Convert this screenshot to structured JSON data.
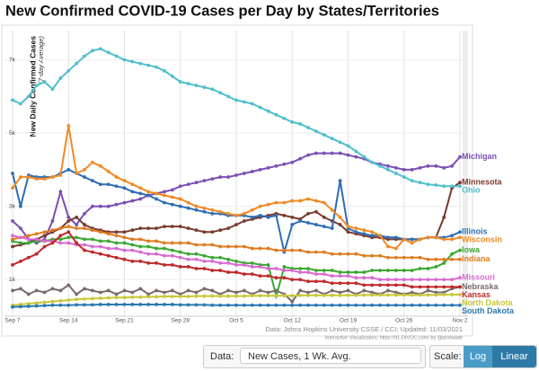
{
  "chart_data": {
    "type": "line",
    "title": "New Confirmed COVID-19 Cases per Day by States/Territories",
    "y_label": "New Daily Confirmed Cases",
    "y_sublabel": "(7-day Average)",
    "source": "Data: Johns Hopkins University CSSE / CCI; Updated: 11/03/2021",
    "credit": "Interactive Visualization: https://91-DIVOC.com/ by @profwade",
    "log_scale": false,
    "grid": true,
    "categories": [
      "Sep 7",
      null,
      null,
      null,
      null,
      null,
      null,
      "Sep 14",
      null,
      null,
      null,
      null,
      null,
      null,
      "Sep 21",
      null,
      null,
      null,
      null,
      null,
      null,
      "Sep 28",
      null,
      null,
      null,
      null,
      null,
      null,
      "Oct 5",
      null,
      null,
      null,
      null,
      null,
      null,
      "Oct 12",
      null,
      null,
      null,
      null,
      null,
      null,
      "Oct 19",
      null,
      null,
      null,
      null,
      null,
      null,
      "Oct 26",
      null,
      null,
      null,
      null,
      null,
      null,
      "Nov 2"
    ],
    "ylim": [
      0,
      7800
    ],
    "yticks": [
      {
        "value": 1000,
        "label": "1k"
      },
      {
        "value": 3000,
        "label": "3k"
      },
      {
        "value": 5000,
        "label": "5k"
      },
      {
        "value": 7000,
        "label": "7k"
      }
    ],
    "series": [
      {
        "name": "Michigan",
        "color": "#7b4fb5",
        "values": [
          2600,
          2400,
          2100,
          2000,
          2100,
          2600,
          3400,
          2700,
          2500,
          2800,
          3000,
          3000,
          3000,
          3050,
          3100,
          3150,
          3200,
          3300,
          3350,
          3400,
          3450,
          3550,
          3600,
          3650,
          3700,
          3750,
          3800,
          3800,
          3850,
          3900,
          3950,
          4000,
          4050,
          4100,
          4150,
          4200,
          4300,
          4400,
          4450,
          4450,
          4450,
          4450,
          4400,
          4350,
          4300,
          4200,
          4150,
          4100,
          4050,
          4000,
          4000,
          4050,
          4100,
          4100,
          4050,
          4100,
          4350
        ]
      },
      {
        "name": "Minnesota",
        "color": "#7a3b2e",
        "values": [
          1900,
          1950,
          2000,
          2100,
          2200,
          2300,
          2400,
          2600,
          2700,
          2500,
          2400,
          2350,
          2300,
          2300,
          2300,
          2350,
          2400,
          2400,
          2400,
          2450,
          2450,
          2450,
          2400,
          2350,
          2300,
          2300,
          2350,
          2400,
          2500,
          2600,
          2650,
          2700,
          2750,
          2800,
          2750,
          2700,
          2650,
          2800,
          2850,
          2700,
          2600,
          2500,
          2300,
          2250,
          2200,
          2150,
          2150,
          2100,
          2100,
          2100,
          2100,
          2100,
          2150,
          2150,
          2700,
          3500,
          3650
        ]
      },
      {
        "name": "Ohio",
        "color": "#4fbfcc",
        "values": [
          5900,
          5800,
          6000,
          6300,
          6400,
          6200,
          6500,
          6700,
          6900,
          7100,
          7250,
          7300,
          7200,
          7100,
          7000,
          6950,
          6900,
          6850,
          6800,
          6700,
          6550,
          6400,
          6350,
          6300,
          6250,
          6200,
          6100,
          6000,
          5900,
          5850,
          5800,
          5700,
          5600,
          5500,
          5400,
          5300,
          5250,
          5150,
          5050,
          4950,
          4850,
          4750,
          4650,
          4500,
          4350,
          4200,
          4100,
          4000,
          3900,
          3800,
          3700,
          3650,
          3600,
          3580,
          3550,
          3550,
          3550
        ]
      },
      {
        "name": "Illinois",
        "color": "#2e6db4",
        "values": [
          3900,
          3000,
          3850,
          3800,
          3800,
          3800,
          3900,
          4000,
          3900,
          3800,
          3700,
          3600,
          3600,
          3550,
          3500,
          3400,
          3350,
          3300,
          3200,
          3100,
          3050,
          3000,
          2950,
          2900,
          2850,
          2800,
          2800,
          2750,
          2750,
          2750,
          2700,
          2750,
          2700,
          2750,
          1750,
          2500,
          2600,
          2550,
          2500,
          2450,
          2400,
          3700,
          2400,
          2300,
          2250,
          2200,
          2200,
          2150,
          2150,
          2100,
          2100,
          2100,
          2150,
          2150,
          2150,
          2200,
          2300
        ]
      },
      {
        "name": "Wisconsin",
        "color": "#f08a24",
        "values": [
          3500,
          3800,
          3800,
          3750,
          3750,
          3800,
          3850,
          5200,
          3900,
          4000,
          4200,
          4100,
          3950,
          3800,
          3700,
          3600,
          3500,
          3400,
          3350,
          3300,
          3250,
          3200,
          3100,
          3000,
          2950,
          2900,
          2850,
          2800,
          2750,
          2800,
          2900,
          3000,
          3050,
          3100,
          3100,
          3150,
          3150,
          3200,
          3150,
          3100,
          2900,
          2700,
          2450,
          2400,
          2350,
          2300,
          2200,
          1900,
          1850,
          2100,
          2000,
          2100,
          2150,
          2150,
          2100,
          2100,
          2150
        ]
      },
      {
        "name": "Iowa",
        "color": "#3aa832",
        "values": [
          2050,
          2000,
          2000,
          2050,
          2050,
          2100,
          2100,
          2150,
          2150,
          2100,
          2100,
          2050,
          2050,
          2000,
          2000,
          1950,
          1900,
          1900,
          1850,
          1850,
          1800,
          1750,
          1700,
          1700,
          1650,
          1600,
          1600,
          1550,
          1500,
          1450,
          1450,
          1400,
          1400,
          550,
          1350,
          1300,
          1300,
          1300,
          1250,
          1250,
          1250,
          1200,
          1200,
          1200,
          1200,
          1250,
          1250,
          1250,
          1250,
          1250,
          1250,
          1300,
          1300,
          1350,
          1450,
          1700,
          1800
        ]
      },
      {
        "name": "Indiana",
        "color": "#e07b20",
        "values": [
          2100,
          2150,
          2200,
          2250,
          2300,
          2350,
          2400,
          2450,
          2400,
          2400,
          2350,
          2300,
          2250,
          2200,
          2150,
          2100,
          2100,
          2050,
          2050,
          2000,
          2000,
          2000,
          2000,
          1950,
          1950,
          1950,
          1900,
          1900,
          1900,
          1900,
          1850,
          1850,
          1850,
          1800,
          1800,
          1800,
          1800,
          1750,
          1750,
          1750,
          1700,
          1700,
          1700,
          1700,
          1650,
          1650,
          1650,
          1600,
          1600,
          1600,
          1600,
          1600,
          1550,
          1550,
          1550,
          1550,
          1550
        ]
      },
      {
        "name": "Nebraska",
        "color": "#7a6a6a",
        "values": [
          700,
          750,
          600,
          700,
          650,
          750,
          700,
          850,
          600,
          750,
          700,
          650,
          700,
          600,
          700,
          650,
          750,
          600,
          700,
          650,
          700,
          600,
          700,
          650,
          750,
          700,
          600,
          700,
          650,
          700,
          600,
          700,
          650,
          700,
          600,
          400,
          700,
          650,
          700,
          600,
          700,
          650,
          700,
          600,
          700,
          650,
          600,
          700,
          650,
          600,
          650,
          600,
          700,
          650,
          650,
          750,
          800
        ]
      },
      {
        "name": "Missouri",
        "color": "#d86ad0",
        "values": [
          2200,
          2150,
          2100,
          2100,
          2050,
          2050,
          2000,
          2000,
          1950,
          1950,
          1900,
          1900,
          1850,
          1850,
          1800,
          1800,
          1750,
          1700,
          1700,
          1650,
          1650,
          1600,
          1550,
          1550,
          1500,
          1500,
          1450,
          1450,
          1400,
          1400,
          1350,
          1350,
          1300,
          1300,
          1250,
          1250,
          1200,
          1200,
          1150,
          1150,
          1100,
          1100,
          1100,
          1050,
          1050,
          1050,
          1000,
          1000,
          1000,
          1000,
          1000,
          1000,
          1000,
          1000,
          1000,
          1000,
          1050
        ]
      },
      {
        "name": "Kansas",
        "color": "#c0282a",
        "values": [
          1400,
          1500,
          1600,
          1700,
          1900,
          2000,
          2200,
          2300,
          2000,
          1800,
          1750,
          1700,
          1650,
          1600,
          1550,
          1500,
          1500,
          1450,
          1450,
          1400,
          1400,
          1350,
          1350,
          1300,
          1300,
          1250,
          1250,
          1200,
          1200,
          1150,
          1150,
          1100,
          1100,
          1050,
          1050,
          1000,
          1000,
          950,
          950,
          950,
          900,
          900,
          900,
          900,
          850,
          850,
          850,
          850,
          850,
          850,
          800,
          800,
          800,
          800,
          800,
          800,
          800
        ]
      },
      {
        "name": "North Dakota",
        "color": "#c8c83a",
        "values": [
          300,
          320,
          340,
          360,
          380,
          400,
          420,
          440,
          460,
          470,
          480,
          490,
          500,
          510,
          510,
          520,
          520,
          530,
          530,
          540,
          540,
          540,
          540,
          550,
          550,
          550,
          550,
          550,
          550,
          550,
          560,
          560,
          560,
          560,
          560,
          560,
          570,
          570,
          570,
          570,
          570,
          570,
          570,
          570,
          580,
          580,
          580,
          580,
          580,
          580,
          580,
          580,
          580,
          580,
          590,
          590,
          590
        ]
      },
      {
        "name": "South Dakota",
        "color": "#2a7ab0",
        "values": [
          250,
          260,
          270,
          280,
          290,
          300,
          300,
          300,
          310,
          310,
          310,
          320,
          320,
          320,
          320,
          320,
          320,
          320,
          320,
          320,
          320,
          310,
          310,
          310,
          310,
          300,
          300,
          300,
          300,
          300,
          300,
          300,
          300,
          300,
          300,
          300,
          300,
          300,
          300,
          300,
          300,
          300,
          300,
          300,
          300,
          300,
          300,
          300,
          300,
          300,
          300,
          300,
          300,
          300,
          300,
          300,
          300
        ]
      }
    ]
  },
  "controls": {
    "data_label": "Data:",
    "data_option": "New Cases, 1 Wk. Avg.",
    "scale_label": "Scale:",
    "scale_options": [
      "Log",
      "Linear"
    ]
  }
}
